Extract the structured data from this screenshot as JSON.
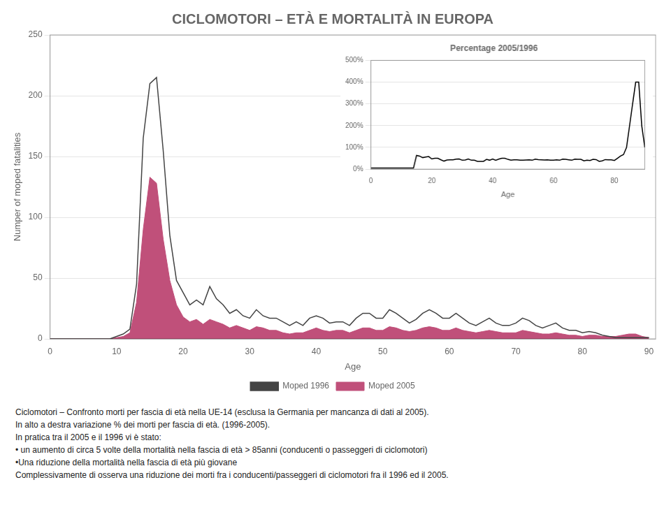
{
  "chart_data": [
    {
      "type": "line",
      "title": "CICLOMOTORI – ETÀ E MORTALITÀ IN EUROPA",
      "xlabel": "Age",
      "ylabel": "Numper of moped fatalities",
      "x": [
        0,
        1,
        2,
        3,
        4,
        5,
        6,
        7,
        8,
        9,
        10,
        11,
        12,
        13,
        14,
        15,
        16,
        17,
        18,
        19,
        20,
        21,
        22,
        23,
        24,
        25,
        26,
        27,
        28,
        29,
        30,
        31,
        32,
        33,
        34,
        35,
        36,
        37,
        38,
        39,
        40,
        41,
        42,
        43,
        44,
        45,
        46,
        47,
        48,
        49,
        50,
        51,
        52,
        53,
        54,
        55,
        56,
        57,
        58,
        59,
        60,
        61,
        62,
        63,
        64,
        65,
        66,
        67,
        68,
        69,
        70,
        71,
        72,
        73,
        74,
        75,
        76,
        77,
        78,
        79,
        80,
        81,
        82,
        83,
        84,
        85,
        86,
        87,
        88,
        89,
        90
      ],
      "xlim": [
        0,
        91
      ],
      "xticks": [
        0,
        10,
        20,
        30,
        40,
        50,
        60,
        70,
        80,
        90
      ],
      "ylim": [
        0,
        250
      ],
      "yticks": [
        0,
        50,
        100,
        150,
        200,
        250
      ],
      "grid": "y",
      "legend": "bottom",
      "series": [
        {
          "name": "Moped 2005",
          "type": "area",
          "color": "#C0507A",
          "values": [
            0,
            0,
            0,
            0,
            0,
            0,
            0,
            0,
            0,
            0,
            1,
            2,
            5,
            30,
            90,
            133,
            128,
            82,
            48,
            28,
            18,
            14,
            16,
            12,
            16,
            14,
            12,
            9,
            11,
            9,
            7,
            10,
            9,
            7,
            7,
            5,
            4,
            5,
            5,
            7,
            9,
            7,
            6,
            7,
            7,
            5,
            7,
            9,
            9,
            7,
            7,
            10,
            9,
            7,
            6,
            7,
            9,
            10,
            9,
            7,
            7,
            9,
            7,
            6,
            5,
            6,
            7,
            6,
            5,
            5,
            5,
            7,
            6,
            5,
            4,
            4,
            5,
            4,
            3,
            3,
            2,
            3,
            3,
            2,
            2,
            2,
            3,
            4,
            4,
            2,
            1
          ]
        },
        {
          "name": "Moped 1996",
          "type": "line",
          "color": "#444444",
          "values": [
            0,
            0,
            0,
            0,
            0,
            0,
            0,
            0,
            0,
            0,
            2,
            4,
            8,
            45,
            165,
            210,
            215,
            155,
            85,
            48,
            38,
            28,
            32,
            28,
            43,
            33,
            28,
            21,
            24,
            19,
            17,
            24,
            19,
            17,
            17,
            14,
            11,
            14,
            11,
            17,
            19,
            17,
            13,
            14,
            14,
            11,
            17,
            21,
            21,
            17,
            17,
            24,
            21,
            17,
            13,
            16,
            21,
            24,
            21,
            17,
            17,
            21,
            17,
            13,
            11,
            14,
            17,
            13,
            11,
            11,
            13,
            17,
            15,
            11,
            9,
            11,
            13,
            9,
            7,
            7,
            5,
            6,
            5,
            3,
            2,
            1,
            1,
            1,
            1,
            1,
            1
          ]
        }
      ],
      "annotations": [
        "Ciclomotori – Confronto morti per fascia di età nella UE-14 (esclusa la Germania per mancanza di dati al 2005).",
        "In alto a destra variazione % dei morti per fascia di età. (1996-2005).",
        "In pratica tra il 2005 e il 1996 vi è stato:",
        "• un aumento di circa 5 volte della mortalità nella fascia di età > 85anni (conducenti o passeggeri di ciclomotori)",
        "•Una riduzione della mortalità nella fascia di età più giovane",
        "Complessivamente di osserva una riduzione dei morti fra i conducenti/passeggeri di ciclomotori fra il 1996 ed il 2005."
      ]
    },
    {
      "type": "line",
      "title": "Percentage 2005/1996",
      "xlabel": "Age",
      "x": [
        0,
        1,
        2,
        3,
        4,
        5,
        6,
        7,
        8,
        9,
        10,
        11,
        12,
        13,
        14,
        15,
        16,
        17,
        18,
        19,
        20,
        21,
        22,
        23,
        24,
        25,
        26,
        27,
        28,
        29,
        30,
        31,
        32,
        33,
        34,
        35,
        36,
        37,
        38,
        39,
        40,
        41,
        42,
        43,
        44,
        45,
        46,
        47,
        48,
        49,
        50,
        51,
        52,
        53,
        54,
        55,
        56,
        57,
        58,
        59,
        60,
        61,
        62,
        63,
        64,
        65,
        66,
        67,
        68,
        69,
        70,
        71,
        72,
        73,
        74,
        75,
        76,
        77,
        78,
        79,
        80,
        81,
        82,
        83,
        84,
        85,
        86,
        87,
        88,
        89,
        90
      ],
      "xlim": [
        0,
        90
      ],
      "xticks": [
        0,
        20,
        40,
        60,
        80
      ],
      "ylim": [
        0,
        500
      ],
      "yticks": [
        {
          "value": 0,
          "label": "0%"
        },
        {
          "value": 100,
          "label": "100%"
        },
        {
          "value": 200,
          "label": "200%"
        },
        {
          "value": 300,
          "label": "300%"
        },
        {
          "value": 400,
          "label": "400%"
        },
        {
          "value": 500,
          "label": "500%"
        }
      ],
      "grid": "y",
      "color": "#000000",
      "values": [
        5,
        5,
        5,
        5,
        5,
        5,
        5,
        5,
        5,
        5,
        5,
        5,
        5,
        5,
        5,
        63,
        60,
        53,
        56,
        58,
        47,
        50,
        50,
        43,
        37,
        42,
        43,
        43,
        46,
        47,
        41,
        42,
        47,
        41,
        41,
        36,
        36,
        36,
        45,
        41,
        47,
        41,
        46,
        50,
        50,
        45,
        41,
        43,
        43,
        41,
        41,
        42,
        43,
        41,
        46,
        44,
        43,
        42,
        43,
        41,
        41,
        43,
        41,
        46,
        45,
        43,
        41,
        46,
        45,
        45,
        38,
        41,
        40,
        45,
        44,
        36,
        38,
        44,
        43,
        43,
        40,
        50,
        60,
        67,
        100,
        200,
        300,
        400,
        400,
        200,
        100
      ]
    }
  ]
}
